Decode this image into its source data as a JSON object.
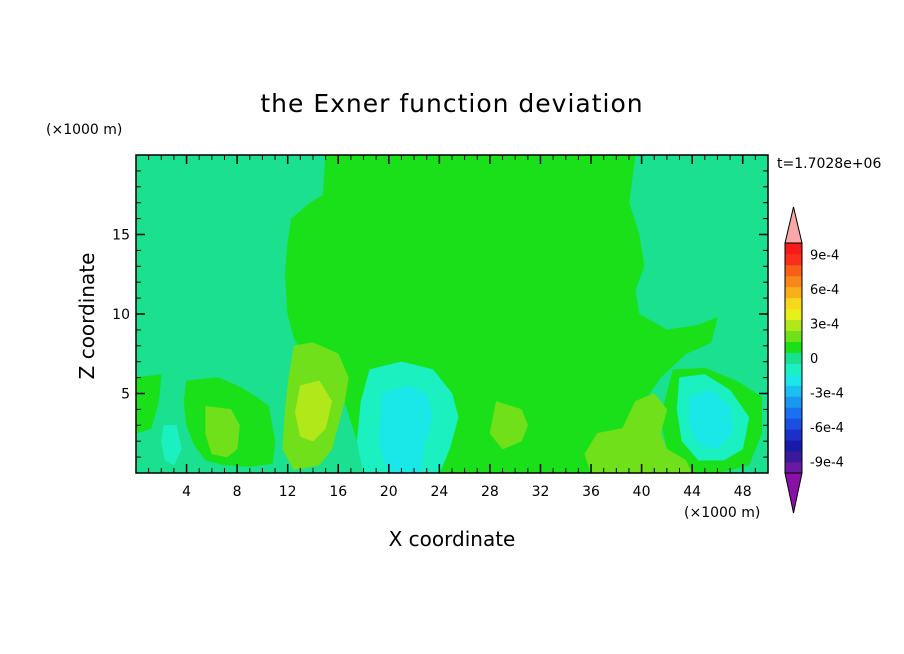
{
  "chart_data": {
    "type": "heatmap",
    "title": "the Exner function deviation",
    "xlabel": "X coordinate",
    "ylabel": "Z coordinate",
    "x_unit": "(×1000 m)",
    "y_unit": "(×1000 m)",
    "time_label": "t=1.7028e+06",
    "xlim": [
      0,
      50
    ],
    "ylim": [
      0,
      20
    ],
    "x_ticks": [
      4,
      8,
      12,
      16,
      20,
      24,
      28,
      32,
      36,
      40,
      44,
      48
    ],
    "x_tick_labels": [
      "4",
      "8",
      "12",
      "16",
      "20",
      "24",
      "28",
      "32",
      "36",
      "40",
      "44",
      "48"
    ],
    "y_ticks": [
      5,
      10,
      15
    ],
    "y_tick_labels": [
      "5",
      "10",
      "15"
    ],
    "colorbar": {
      "levels": [
        -0.001,
        -0.0009,
        -0.0008,
        -0.0007,
        -0.0006,
        -0.0005,
        -0.0004,
        -0.0003,
        -0.0002,
        -0.0001,
        0,
        0.0001,
        0.0002,
        0.0003,
        0.0004,
        0.0005,
        0.0006,
        0.0007,
        0.0008,
        0.0009,
        0.001
      ],
      "colors": [
        "#6a1aa0",
        "#3a1a9a",
        "#1a1aa8",
        "#1a30c8",
        "#1a50e0",
        "#1a70f0",
        "#1a98f0",
        "#1ac0f0",
        "#1ae8e8",
        "#1af0c0",
        "#1ae090",
        "#1ae01a",
        "#70e01a",
        "#b0e81a",
        "#e8f01a",
        "#f8d81a",
        "#f8b01a",
        "#f8881a",
        "#f8601a",
        "#f8301a",
        "#f81a1a"
      ],
      "under_color": "#8a10a8",
      "over_color": "#f8a8a8",
      "tick_values": [
        0.0009,
        0.0006,
        0.0003,
        0,
        -0.0003,
        -0.0006,
        -0.0009
      ],
      "tick_labels": [
        "9e-4",
        "6e-4",
        "3e-4",
        "0",
        "-3e-4",
        "-6e-4",
        "-9e-4"
      ]
    },
    "fields": {
      "background": "#1ae090",
      "regions": [
        {
          "level": 0,
          "color": "#1ae01a",
          "points": [
            [
              15.0,
              20.0
            ],
            [
              39.5,
              20.0
            ],
            [
              39.0,
              17.0
            ],
            [
              39.8,
              15.0
            ],
            [
              40.2,
              13.0
            ],
            [
              39.5,
              11.5
            ],
            [
              39.8,
              10.0
            ],
            [
              42.0,
              9.0
            ],
            [
              44.5,
              9.3
            ],
            [
              46.0,
              9.8
            ],
            [
              45.5,
              8.2
            ],
            [
              43.5,
              7.5
            ],
            [
              41.5,
              6.0
            ],
            [
              40.2,
              4.5
            ],
            [
              39.0,
              1.8
            ],
            [
              37.5,
              0.0
            ],
            [
              19.0,
              0.0
            ],
            [
              17.5,
              2.0
            ],
            [
              16.5,
              4.5
            ],
            [
              14.0,
              6.5
            ],
            [
              12.5,
              8.5
            ],
            [
              12.0,
              10.0
            ],
            [
              11.8,
              12.5
            ],
            [
              12.0,
              14.5
            ],
            [
              12.3,
              16.0
            ],
            [
              13.8,
              17.0
            ],
            [
              14.8,
              17.5
            ]
          ]
        },
        {
          "level": 0,
          "color": "#1ae01a",
          "points": [
            [
              0.0,
              6.0
            ],
            [
              2.0,
              6.2
            ],
            [
              1.8,
              4.5
            ],
            [
              1.2,
              2.8
            ],
            [
              0.0,
              2.5
            ]
          ]
        },
        {
          "level": 0,
          "color": "#1ae01a",
          "points": [
            [
              4.0,
              5.8
            ],
            [
              6.5,
              6.0
            ],
            [
              8.0,
              5.5
            ],
            [
              9.5,
              4.8
            ],
            [
              10.5,
              4.2
            ],
            [
              11.0,
              2.0
            ],
            [
              10.8,
              0.6
            ],
            [
              9.0,
              0.4
            ],
            [
              7.0,
              0.5
            ],
            [
              5.5,
              0.8
            ],
            [
              4.6,
              1.8
            ],
            [
              4.0,
              3.0
            ],
            [
              3.8,
              4.5
            ]
          ]
        },
        {
          "level": 0,
          "color": "#1ae01a",
          "points": [
            [
              42.5,
              6.5
            ],
            [
              45.0,
              6.6
            ],
            [
              47.5,
              5.8
            ],
            [
              49.5,
              4.8
            ],
            [
              49.5,
              2.5
            ],
            [
              48.5,
              0.5
            ],
            [
              46.0,
              0.0
            ],
            [
              43.0,
              0.0
            ],
            [
              42.0,
              1.5
            ],
            [
              41.5,
              3.5
            ]
          ]
        },
        {
          "level": 1,
          "color": "#70e01a",
          "points": [
            [
              12.5,
              8.0
            ],
            [
              14.0,
              8.2
            ],
            [
              16.0,
              7.5
            ],
            [
              16.8,
              6.0
            ],
            [
              16.5,
              4.5
            ],
            [
              16.0,
              3.0
            ],
            [
              15.5,
              1.5
            ],
            [
              14.5,
              0.5
            ],
            [
              12.5,
              0.2
            ],
            [
              11.6,
              1.5
            ],
            [
              11.8,
              4.0
            ],
            [
              12.1,
              6.0
            ]
          ]
        },
        {
          "level": 1,
          "color": "#70e01a",
          "points": [
            [
              5.5,
              4.2
            ],
            [
              7.5,
              4.0
            ],
            [
              8.2,
              3.0
            ],
            [
              8.0,
              1.5
            ],
            [
              7.2,
              1.0
            ],
            [
              6.0,
              1.2
            ],
            [
              5.5,
              2.5
            ]
          ]
        },
        {
          "level": 1,
          "color": "#70e01a",
          "points": [
            [
              28.5,
              4.5
            ],
            [
              30.5,
              4.0
            ],
            [
              31.0,
              3.0
            ],
            [
              30.5,
              2.0
            ],
            [
              29.0,
              1.5
            ],
            [
              28.0,
              2.5
            ]
          ]
        },
        {
          "level": 1,
          "color": "#70e01a",
          "points": [
            [
              36.5,
              2.5
            ],
            [
              38.5,
              2.8
            ],
            [
              39.5,
              4.5
            ],
            [
              41.0,
              5.0
            ],
            [
              42.0,
              4.0
            ],
            [
              41.5,
              2.5
            ],
            [
              42.0,
              1.5
            ],
            [
              43.5,
              0.8
            ],
            [
              44.0,
              0.0
            ],
            [
              36.0,
              0.0
            ],
            [
              35.5,
              1.2
            ]
          ]
        },
        {
          "level": 2,
          "color": "#b0e81a",
          "points": [
            [
              13.0,
              5.5
            ],
            [
              14.5,
              5.8
            ],
            [
              15.5,
              4.5
            ],
            [
              15.0,
              2.8
            ],
            [
              14.0,
              2.0
            ],
            [
              13.0,
              2.3
            ],
            [
              12.6,
              3.8
            ]
          ]
        },
        {
          "level": -1,
          "color": "#1af0c0",
          "points": [
            [
              18.5,
              6.5
            ],
            [
              21.0,
              7.0
            ],
            [
              23.5,
              6.5
            ],
            [
              25.0,
              5.0
            ],
            [
              25.5,
              3.5
            ],
            [
              24.8,
              1.5
            ],
            [
              24.0,
              0.0
            ],
            [
              18.0,
              0.0
            ],
            [
              17.5,
              2.0
            ],
            [
              17.8,
              4.5
            ]
          ]
        },
        {
          "level": -1,
          "color": "#1af0c0",
          "points": [
            [
              43.0,
              6.0
            ],
            [
              45.0,
              6.2
            ],
            [
              47.0,
              5.2
            ],
            [
              48.5,
              3.5
            ],
            [
              48.0,
              1.5
            ],
            [
              46.5,
              0.8
            ],
            [
              44.5,
              0.8
            ],
            [
              43.2,
              2.0
            ],
            [
              42.8,
              4.0
            ]
          ]
        },
        {
          "level": -1,
          "color": "#1af0c0",
          "points": [
            [
              2.2,
              3.0
            ],
            [
              3.2,
              3.0
            ],
            [
              3.6,
              1.5
            ],
            [
              3.0,
              0.5
            ],
            [
              2.3,
              0.8
            ],
            [
              2.0,
              2.0
            ]
          ]
        },
        {
          "level": -2,
          "color": "#1ae8e8",
          "points": [
            [
              19.5,
              5.0
            ],
            [
              21.5,
              5.5
            ],
            [
              23.0,
              5.0
            ],
            [
              23.5,
              3.5
            ],
            [
              22.8,
              1.8
            ],
            [
              22.5,
              0.0
            ],
            [
              20.0,
              0.0
            ],
            [
              19.2,
              2.0
            ]
          ]
        },
        {
          "level": -2,
          "color": "#1ae8e8",
          "points": [
            [
              43.8,
              4.8
            ],
            [
              45.5,
              5.2
            ],
            [
              47.0,
              4.2
            ],
            [
              47.2,
              2.5
            ],
            [
              46.0,
              1.5
            ],
            [
              44.5,
              1.8
            ],
            [
              43.8,
              3.0
            ]
          ]
        }
      ]
    }
  }
}
